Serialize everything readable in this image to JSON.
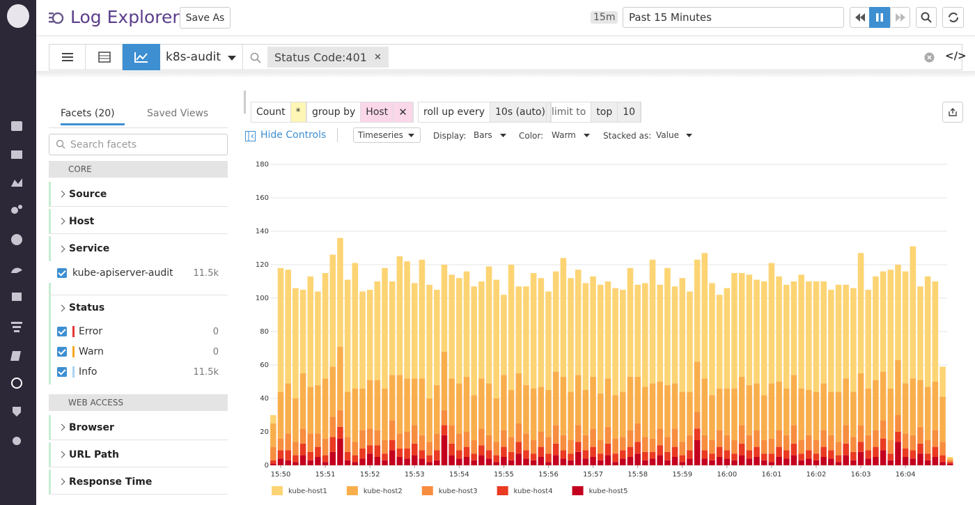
{
  "header": {
    "title": "Log Explorer",
    "save_as": "Save As",
    "range_short": "15m",
    "range": "Past 15 Minutes"
  },
  "search": {
    "index": "k8s-audit",
    "query": "Status Code:401"
  },
  "facets": {
    "tab_facets": "Facets (20)",
    "tab_saved": "Saved Views",
    "search_placeholder": "Search facets",
    "core": "CORE",
    "source": "Source",
    "host": "Host",
    "service": "Service",
    "service_items": [
      {
        "label": "kube-apiserver-audit",
        "count": "11.5k"
      }
    ],
    "status": "Status",
    "status_items": [
      {
        "label": "Error",
        "count": "0"
      },
      {
        "label": "Warn",
        "count": "0"
      },
      {
        "label": "Info",
        "count": "11.5k"
      }
    ],
    "web_access": "WEB ACCESS",
    "browser": "Browser",
    "url_path": "URL Path",
    "response_time": "Response Time"
  },
  "query": {
    "count": "Count",
    "star": "*",
    "group_by": "group by",
    "group_value": "Host",
    "rollup": "roll up every",
    "rollup_value": "10s (auto)",
    "limit": "limit to",
    "limit_dir": "top",
    "limit_value": "10"
  },
  "controls": {
    "hide": "Hide Controls",
    "viz": "Timeseries",
    "display_label": "Display:",
    "display": "Bars",
    "color_label": "Color:",
    "color": "Warm",
    "stacked_label": "Stacked as:",
    "stacked": "Value"
  },
  "chart_data": {
    "type": "bar",
    "stacked": true,
    "grid": true,
    "ylim": [
      0,
      180
    ],
    "yticks": [
      0,
      20,
      40,
      60,
      80,
      100,
      120,
      140,
      160,
      180
    ],
    "categories": [
      null,
      "15:50",
      null,
      null,
      null,
      null,
      null,
      "15:51",
      null,
      null,
      null,
      null,
      null,
      "15:52",
      null,
      null,
      null,
      null,
      null,
      "15:53",
      null,
      null,
      null,
      null,
      null,
      "15:54",
      null,
      null,
      null,
      null,
      null,
      "15:55",
      null,
      null,
      null,
      null,
      null,
      "15:56",
      null,
      null,
      null,
      null,
      null,
      "15:57",
      null,
      null,
      null,
      null,
      null,
      "15:58",
      null,
      null,
      null,
      null,
      null,
      "15:59",
      null,
      null,
      null,
      null,
      null,
      "16:00",
      null,
      null,
      null,
      null,
      null,
      "16:01",
      null,
      null,
      null,
      null,
      null,
      "16:02",
      null,
      null,
      null,
      null,
      null,
      "16:03",
      null,
      null,
      null,
      null,
      null,
      "16:04",
      null,
      null,
      null,
      null,
      null,
      null
    ],
    "series": [
      {
        "name": "kube-host5",
        "color": "#c4001f",
        "values": [
          1,
          4,
          3,
          2,
          6,
          3,
          5,
          2,
          8,
          16,
          3,
          2,
          4,
          7,
          5,
          3,
          9,
          5,
          4,
          6,
          4,
          2,
          3,
          18,
          6,
          4,
          5,
          3,
          6,
          4,
          2,
          5,
          3,
          7,
          4,
          3,
          5,
          2,
          6,
          4,
          3,
          8,
          4,
          5,
          3,
          6,
          2,
          4,
          5,
          7,
          3,
          4,
          6,
          3,
          5,
          2,
          4,
          15,
          4,
          3,
          5,
          4,
          3,
          6,
          4,
          5,
          3,
          2,
          5,
          4,
          6,
          3,
          4,
          3,
          5,
          4,
          2,
          6,
          3,
          8,
          4,
          5,
          9,
          3,
          14,
          5,
          4,
          7,
          3,
          5,
          2,
          1
        ]
      },
      {
        "name": "kube-host4",
        "color": "#ea3a22",
        "values": [
          2,
          5,
          6,
          4,
          7,
          5,
          6,
          4,
          9,
          7,
          5,
          4,
          6,
          5,
          7,
          4,
          6,
          5,
          6,
          7,
          5,
          4,
          6,
          6,
          7,
          5,
          6,
          4,
          6,
          5,
          4,
          6,
          5,
          7,
          5,
          4,
          6,
          5,
          7,
          5,
          4,
          6,
          5,
          6,
          4,
          7,
          5,
          5,
          6,
          7,
          5,
          4,
          6,
          5,
          6,
          4,
          5,
          7,
          5,
          4,
          6,
          5,
          4,
          7,
          5,
          6,
          4,
          5,
          6,
          5,
          7,
          4,
          5,
          4,
          6,
          5,
          4,
          7,
          5,
          6,
          5,
          6,
          7,
          4,
          6,
          5,
          5,
          6,
          4,
          6,
          4,
          1
        ]
      },
      {
        "name": "kube-host3",
        "color": "#f78d3f",
        "values": [
          8,
          7,
          10,
          8,
          9,
          11,
          8,
          10,
          12,
          10,
          9,
          8,
          11,
          10,
          9,
          8,
          12,
          9,
          10,
          11,
          9,
          8,
          10,
          9,
          11,
          10,
          9,
          8,
          10,
          9,
          8,
          10,
          9,
          11,
          10,
          8,
          9,
          10,
          11,
          9,
          8,
          10,
          9,
          11,
          8,
          10,
          9,
          8,
          10,
          11,
          9,
          8,
          10,
          9,
          11,
          8,
          9,
          10,
          9,
          8,
          10,
          9,
          8,
          11,
          9,
          10,
          8,
          9,
          10,
          9,
          11,
          8,
          9,
          8,
          10,
          9,
          8,
          11,
          9,
          10,
          9,
          10,
          11,
          8,
          10,
          9,
          9,
          10,
          8,
          10,
          8,
          1
        ]
      },
      {
        "name": "kube-host2",
        "color": "#f9ae4c",
        "values": [
          14,
          28,
          30,
          26,
          33,
          28,
          29,
          36,
          30,
          38,
          27,
          32,
          25,
          29,
          30,
          31,
          27,
          35,
          32,
          28,
          34,
          26,
          29,
          35,
          28,
          30,
          33,
          27,
          30,
          31,
          26,
          33,
          28,
          30,
          29,
          31,
          27,
          28,
          32,
          35,
          29,
          30,
          27,
          31,
          28,
          29,
          26,
          27,
          32,
          28,
          30,
          33,
          28,
          31,
          27,
          30,
          26,
          30,
          34,
          27,
          25,
          28,
          31,
          29,
          30,
          28,
          27,
          33,
          29,
          28,
          30,
          31,
          27,
          29,
          28,
          26,
          30,
          28,
          27,
          31,
          28,
          30,
          29,
          31,
          33,
          30,
          34,
          28,
          32,
          29,
          27,
          1
        ]
      },
      {
        "name": "kube-host1",
        "color": "#fdd474",
        "values": [
          5,
          74,
          68,
          66,
          50,
          66,
          56,
          63,
          67,
          65,
          67,
          75,
          58,
          54,
          59,
          72,
          56,
          71,
          70,
          57,
          71,
          68,
          57,
          52,
          62,
          63,
          63,
          65,
          58,
          70,
          71,
          48,
          75,
          52,
          59,
          69,
          65,
          59,
          60,
          71,
          68,
          63,
          64,
          60,
          65,
          58,
          64,
          61,
          65,
          55,
          62,
          74,
          58,
          70,
          58,
          68,
          60,
          61,
          75,
          67,
          56,
          60,
          69,
          62,
          66,
          62,
          68,
          72,
          63,
          62,
          56,
          68,
          65,
          66,
          61,
          61,
          64,
          56,
          62,
          72,
          59,
          62,
          60,
          71,
          57,
          67,
          79,
          56,
          66,
          60,
          18,
          1
        ]
      }
    ]
  }
}
